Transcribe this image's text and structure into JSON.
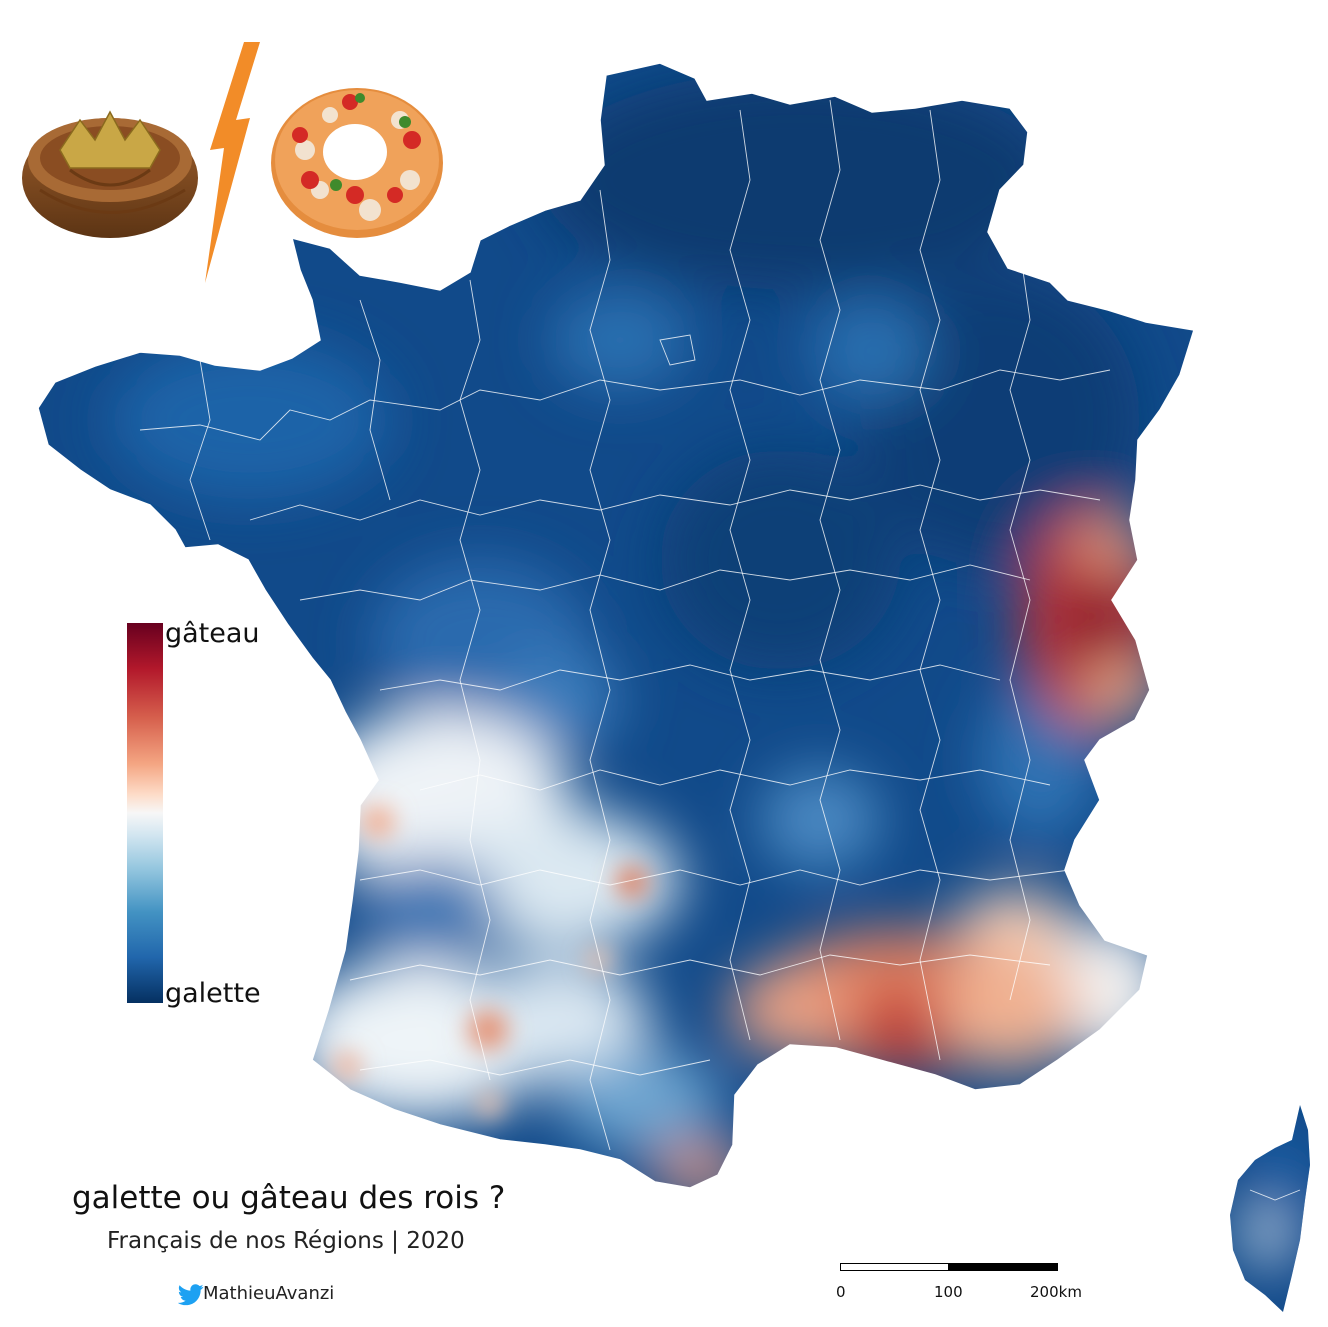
{
  "title": "galette ou gâteau des rois ?",
  "subtitle": "Français de nos Régions | 2020",
  "credit": {
    "handle": "MathieuAvanzi",
    "icon": "twitter-bird-icon"
  },
  "legend": {
    "top_label": "gâteau",
    "bottom_label": "galette",
    "colors": [
      "#67001f",
      "#b2182b",
      "#d6604d",
      "#f4a582",
      "#fddbc7",
      "#f7f7f7",
      "#d1e5f0",
      "#92c5de",
      "#4393c3",
      "#2166ac",
      "#053061"
    ]
  },
  "scale_bar": {
    "labels": [
      "0",
      "100",
      "200km"
    ]
  },
  "illustrations": [
    {
      "name": "galette-des-rois-image"
    },
    {
      "name": "versus-lightning-icon"
    },
    {
      "name": "gateau-des-rois-image"
    }
  ],
  "regions_favoring_gateau": [
    "Provence and Mediterranean coast",
    "Haute-Savoie / Lake Geneva area",
    "Pyrénées-Orientales",
    "Aquitaine spots"
  ],
  "colors": {
    "galette": "#053061",
    "gateau": "#67001f",
    "neutral": "#f7f7f7",
    "lightning": "#f28c28",
    "boundary": "#ffffff"
  }
}
